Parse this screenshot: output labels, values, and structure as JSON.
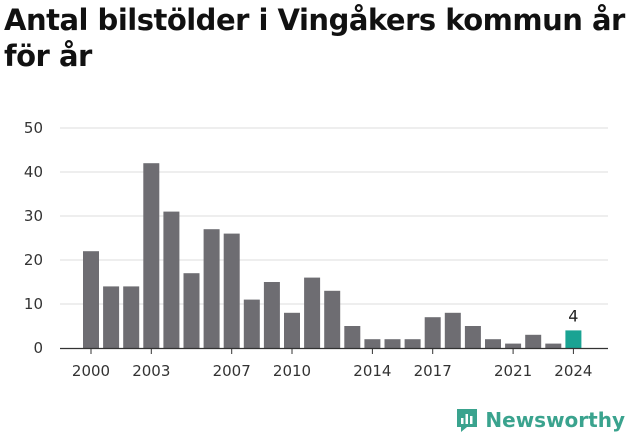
{
  "chart_data": {
    "type": "bar",
    "title": "Antal bilstölder i Vingåkers kommun år för år",
    "categories": [
      "2000",
      "2001",
      "2002",
      "2003",
      "2004",
      "2005",
      "2006",
      "2007",
      "2008",
      "2009",
      "2010",
      "2011",
      "2012",
      "2013",
      "2014",
      "2015",
      "2016",
      "2017",
      "2018",
      "2019",
      "2020",
      "2021",
      "2022",
      "2023",
      "2024"
    ],
    "values": [
      22,
      14,
      14,
      42,
      31,
      17,
      27,
      26,
      11,
      15,
      8,
      16,
      13,
      5,
      2,
      2,
      2,
      7,
      8,
      5,
      2,
      1,
      3,
      1,
      4
    ],
    "x_tick_labels": [
      "2000",
      "2003",
      "2007",
      "2010",
      "2014",
      "2017",
      "2021",
      "2024"
    ],
    "y_ticks": [
      0,
      10,
      20,
      30,
      40,
      50
    ],
    "ylim": [
      0,
      50
    ],
    "grid": true,
    "highlight": {
      "category": "2024",
      "label": "4"
    },
    "colors": {
      "bar": "#6e6d72",
      "highlight": "#1aa393",
      "grid": "#dedede",
      "axis": "#333333"
    }
  },
  "branding": {
    "logo_text": "Newsworthy",
    "logo_icon": "newsworthy-chart-icon",
    "logo_color": "#3aa38e"
  }
}
